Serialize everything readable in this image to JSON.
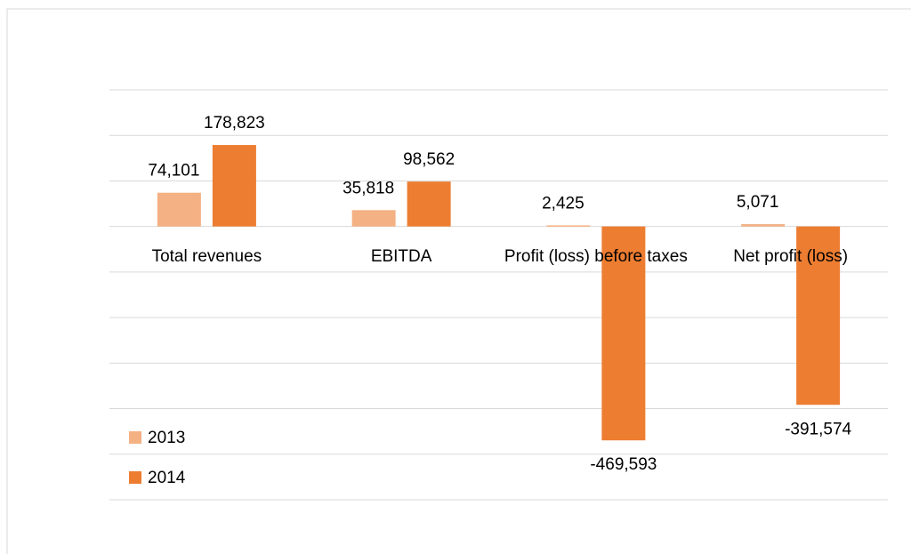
{
  "chart_data": {
    "type": "bar",
    "categories": [
      "Total revenues",
      "EBITDA",
      "Profit (loss) before taxes",
      "Net profit (loss)"
    ],
    "series": [
      {
        "name": "2013",
        "color": "#f4b183",
        "values": [
          74101,
          35818,
          2425,
          5071
        ],
        "value_labels": [
          "74,101",
          "35,818",
          "2,425",
          "5,071"
        ]
      },
      {
        "name": "2014",
        "color": "#ed7d31",
        "values": [
          178823,
          98562,
          -469593,
          -391574
        ],
        "value_labels": [
          "178,823",
          "98,562",
          "-469,593",
          "-391,574"
        ]
      }
    ],
    "ylim": [
      -600000,
      300000
    ],
    "yticks": [
      -600000,
      -500000,
      -400000,
      -300000,
      -200000,
      -100000,
      0,
      100000,
      200000,
      300000
    ],
    "grid": true,
    "legend": "lower left"
  }
}
